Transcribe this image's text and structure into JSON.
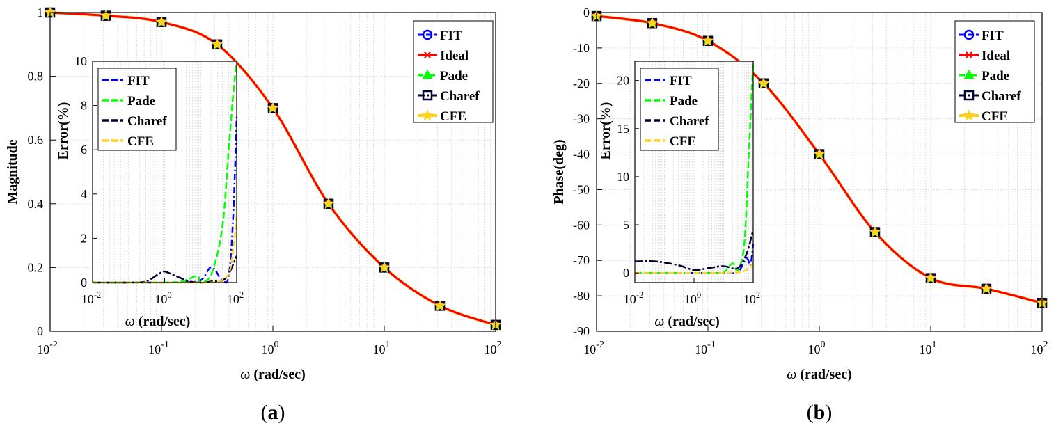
{
  "colors": {
    "fit": "#0000ff",
    "ideal": "#ff0000",
    "pade": "#00ff00",
    "charef": "#000033",
    "cfe": "#ffd21f",
    "grid": "#d7d7d7"
  },
  "chart_data": [
    {
      "id": "a",
      "type": "line",
      "panel_label_open": "(",
      "panel_label_letter": "a",
      "panel_label_close": ")",
      "xscale": "log",
      "xlim": [
        0.01,
        100
      ],
      "ylim": [
        0,
        1
      ],
      "xticks": [
        {
          "b": "10",
          "e": "-2"
        },
        {
          "b": "10",
          "e": "-1"
        },
        {
          "b": "10",
          "e": "0"
        },
        {
          "b": "10",
          "e": "1"
        },
        {
          "b": "10",
          "e": "2"
        }
      ],
      "yticks": [
        {
          "v": 0,
          "label": "0"
        },
        {
          "v": 0.2,
          "label": "0.2"
        },
        {
          "v": 0.4,
          "label": "0.4"
        },
        {
          "v": 0.6,
          "label": "0.6"
        },
        {
          "v": 0.8,
          "label": "0.8"
        },
        {
          "v": 1,
          "label": "1"
        }
      ],
      "xlabel_sym": "ω",
      "xlabel_rest": " (rad/sec)",
      "ylabel": "Magnitude",
      "legend_position": "top-right",
      "series": [
        {
          "name": "FIT",
          "key": "fit",
          "marker": "circle",
          "x": [
            0.01,
            0.0316,
            0.1,
            0.316,
            1,
            3.16,
            10,
            31.6,
            100
          ],
          "y": [
            1.0,
            0.99,
            0.97,
            0.9,
            0.7,
            0.4,
            0.2,
            0.08,
            0.02
          ]
        },
        {
          "name": "Ideal",
          "key": "ideal",
          "marker": "star",
          "x": [
            0.01,
            0.0316,
            0.1,
            0.316,
            1,
            3.16,
            10,
            31.6,
            100
          ],
          "y": [
            1.0,
            0.99,
            0.97,
            0.9,
            0.7,
            0.4,
            0.2,
            0.08,
            0.02
          ]
        },
        {
          "name": "Pade",
          "key": "pade",
          "marker": "triangle",
          "x": [
            0.01,
            0.0316,
            0.1,
            0.316,
            1,
            3.16,
            10,
            31.6,
            100
          ],
          "y": [
            1.0,
            0.99,
            0.97,
            0.9,
            0.7,
            0.4,
            0.2,
            0.08,
            0.02
          ]
        },
        {
          "name": "Charef",
          "key": "charef",
          "marker": "square",
          "x": [
            0.01,
            0.0316,
            0.1,
            0.316,
            1,
            3.16,
            10,
            31.6,
            100
          ],
          "y": [
            1.0,
            0.99,
            0.97,
            0.9,
            0.7,
            0.4,
            0.2,
            0.08,
            0.02
          ]
        },
        {
          "name": "CFE",
          "key": "cfe",
          "marker": "pentagram",
          "x": [
            0.01,
            0.0316,
            0.1,
            0.316,
            1,
            3.16,
            10,
            31.6,
            100
          ],
          "y": [
            1.0,
            0.99,
            0.97,
            0.9,
            0.7,
            0.4,
            0.2,
            0.08,
            0.02
          ]
        }
      ],
      "inset": {
        "xscale": "log",
        "xlim": [
          0.01,
          100
        ],
        "ylim": [
          0,
          10
        ],
        "xticks": [
          {
            "b": "10",
            "e": "-2"
          },
          {
            "b": "10",
            "e": "0"
          },
          {
            "b": "10",
            "e": "2"
          }
        ],
        "yticks": [
          {
            "v": 0,
            "label": "0"
          },
          {
            "v": 2,
            "label": "2"
          },
          {
            "v": 4,
            "label": "4"
          },
          {
            "v": 6,
            "label": "6"
          },
          {
            "v": 8,
            "label": "8"
          },
          {
            "v": 10,
            "label": "10"
          }
        ],
        "xlabel_sym": "ω",
        "xlabel_rest": " (rad/sec)",
        "ylabel": "Error(%)",
        "legend_position": "top-left",
        "series": [
          {
            "name": "FIT",
            "key": "fit",
            "x": [
              0.01,
              0.1,
              0.5,
              1,
              3,
              10,
              20,
              40,
              60,
              80,
              100
            ],
            "y": [
              0,
              0,
              0,
              0,
              0.02,
              0.1,
              0.7,
              0.1,
              0.3,
              3,
              7.5
            ]
          },
          {
            "name": "Pade",
            "key": "pade",
            "x": [
              0.01,
              0.1,
              0.5,
              1,
              3,
              8,
              10,
              20,
              40,
              60,
              80,
              100
            ],
            "y": [
              0,
              0,
              0,
              0,
              0.05,
              0.3,
              0.02,
              0.4,
              2.5,
              6,
              8.5,
              10
            ]
          },
          {
            "name": "Charef",
            "key": "charef",
            "x": [
              0.01,
              0.1,
              0.3,
              0.7,
              1,
              2,
              5,
              10,
              20,
              50,
              100
            ],
            "y": [
              0,
              0,
              0.05,
              0.4,
              0.5,
              0.3,
              0.05,
              0,
              0.05,
              0.2,
              1.2
            ]
          },
          {
            "name": "CFE",
            "key": "cfe",
            "x": [
              0.01,
              0.1,
              1,
              10,
              30,
              60,
              80,
              100
            ],
            "y": [
              0,
              0,
              0,
              0,
              0.05,
              0.4,
              1.5,
              3
            ]
          }
        ]
      }
    },
    {
      "id": "b",
      "type": "line",
      "panel_label_open": "(",
      "panel_label_letter": "b",
      "panel_label_close": ")",
      "xscale": "log",
      "xlim": [
        0.01,
        100
      ],
      "ylim": [
        -90,
        0
      ],
      "xticks": [
        {
          "b": "10",
          "e": "-2"
        },
        {
          "b": "10",
          "e": "-1"
        },
        {
          "b": "10",
          "e": "0"
        },
        {
          "b": "10",
          "e": "1"
        },
        {
          "b": "10",
          "e": "2"
        }
      ],
      "yticks": [
        {
          "v": 0,
          "label": "0"
        },
        {
          "v": -10,
          "label": "-10"
        },
        {
          "v": -20,
          "label": "-20"
        },
        {
          "v": -30,
          "label": "-30"
        },
        {
          "v": -40,
          "label": "-40"
        },
        {
          "v": -50,
          "label": "-50"
        },
        {
          "v": -60,
          "label": "-60"
        },
        {
          "v": -70,
          "label": "-70"
        },
        {
          "v": -80,
          "label": "-80"
        },
        {
          "v": -90,
          "label": "-90"
        }
      ],
      "xlabel_sym": "ω",
      "xlabel_rest": " (rad/sec)",
      "ylabel": "Phase(deg)",
      "legend_position": "top-right",
      "series": [
        {
          "name": "FIT",
          "key": "fit",
          "marker": "circle",
          "x": [
            0.01,
            0.0316,
            0.1,
            0.316,
            1,
            3.16,
            10,
            31.6,
            100
          ],
          "y": [
            -1,
            -3,
            -8,
            -20,
            -40,
            -62,
            -75,
            -78,
            -82
          ]
        },
        {
          "name": "Ideal",
          "key": "ideal",
          "marker": "star",
          "x": [
            0.01,
            0.0316,
            0.1,
            0.316,
            1,
            3.16,
            10,
            31.6,
            100
          ],
          "y": [
            -1,
            -3,
            -8,
            -20,
            -40,
            -62,
            -75,
            -78,
            -82
          ]
        },
        {
          "name": "Pade",
          "key": "pade",
          "marker": "triangle",
          "x": [
            0.01,
            0.0316,
            0.1,
            0.316,
            1,
            3.16,
            10,
            31.6,
            100
          ],
          "y": [
            -1,
            -3,
            -8,
            -20,
            -40,
            -62,
            -75,
            -78,
            -82
          ]
        },
        {
          "name": "Charef",
          "key": "charef",
          "marker": "square",
          "x": [
            0.01,
            0.0316,
            0.1,
            0.316,
            1,
            3.16,
            10,
            31.6,
            100
          ],
          "y": [
            -1,
            -3,
            -8,
            -20,
            -40,
            -62,
            -75,
            -78,
            -82
          ]
        },
        {
          "name": "CFE",
          "key": "cfe",
          "marker": "pentagram",
          "x": [
            0.01,
            0.0316,
            0.1,
            0.316,
            1,
            3.16,
            10,
            31.6,
            100
          ],
          "y": [
            -1,
            -3,
            -8,
            -20,
            -40,
            -62,
            -75,
            -78,
            -82
          ]
        }
      ],
      "inset": {
        "xscale": "log",
        "xlim": [
          0.01,
          100
        ],
        "ylim": [
          -1,
          22
        ],
        "xticks": [
          {
            "b": "10",
            "e": "-2"
          },
          {
            "b": "10",
            "e": "0"
          },
          {
            "b": "10",
            "e": "2"
          }
        ],
        "yticks": [
          {
            "v": 0,
            "label": "0"
          },
          {
            "v": 5,
            "label": "5"
          },
          {
            "v": 10,
            "label": "10"
          },
          {
            "v": 15,
            "label": "15"
          },
          {
            "v": 20,
            "label": "20"
          }
        ],
        "xlabel_sym": "ω",
        "xlabel_rest": " (rad/sec)",
        "ylabel": "Error(%)",
        "legend_position": "top-left",
        "series": [
          {
            "name": "FIT",
            "key": "fit",
            "x": [
              0.01,
              0.1,
              1,
              10,
              30,
              60,
              80,
              100
            ],
            "y": [
              0,
              0,
              0,
              0,
              0.1,
              1.5,
              0.8,
              3
            ]
          },
          {
            "name": "Pade",
            "key": "pade",
            "x": [
              0.01,
              0.1,
              1,
              5,
              10,
              20,
              30,
              50,
              70,
              100
            ],
            "y": [
              0,
              0,
              0,
              0,
              0.05,
              1,
              0.3,
              3,
              12,
              22
            ]
          },
          {
            "name": "Charef",
            "key": "charef",
            "x": [
              0.01,
              0.05,
              0.3,
              1,
              3,
              10,
              30,
              60,
              100
            ],
            "y": [
              1.2,
              1.2,
              0.8,
              0.3,
              0.5,
              0.7,
              0.5,
              2,
              4.5
            ]
          },
          {
            "name": "CFE",
            "key": "cfe",
            "x": [
              0.01,
              0.1,
              1,
              10,
              50,
              100
            ],
            "y": [
              0,
              0,
              0,
              0,
              0.2,
              1
            ]
          }
        ]
      }
    }
  ]
}
